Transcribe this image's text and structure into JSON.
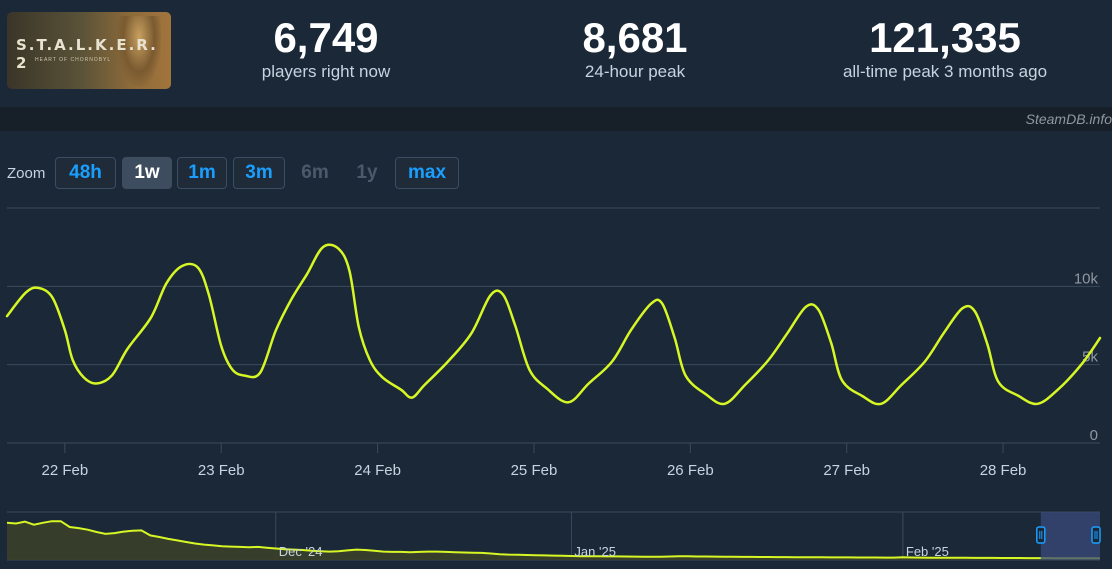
{
  "game": {
    "logo_text": "S.T.A.L.K.E.R. 2",
    "subtitle": "HEART OF CHORNOBYL"
  },
  "stats": [
    {
      "value": "6,749",
      "label": "players right now"
    },
    {
      "value": "8,681",
      "label": "24-hour peak"
    },
    {
      "value": "121,335",
      "label": "all-time peak 3 months ago"
    }
  ],
  "credit": "SteamDB.info",
  "zoom": {
    "label": "Zoom",
    "buttons": [
      {
        "label": "48h",
        "state": "normal"
      },
      {
        "label": "1w",
        "state": "active"
      },
      {
        "label": "1m",
        "state": "normal"
      },
      {
        "label": "3m",
        "state": "normal"
      },
      {
        "label": "6m",
        "state": "disabled"
      },
      {
        "label": "1y",
        "state": "disabled"
      },
      {
        "label": "max",
        "state": "normal"
      }
    ]
  },
  "colors": {
    "background": "#1b2838",
    "line": "#d7f725",
    "grid": "#3b4a5a",
    "accent": "#1a9fff",
    "navigator_fill": "#3b4128",
    "navigator_window": "#3a4a7a"
  },
  "chart_data": [
    {
      "type": "line",
      "title": "",
      "xlabel": "",
      "ylabel": "",
      "x_tick_labels": [
        "22 Feb",
        "23 Feb",
        "24 Feb",
        "25 Feb",
        "26 Feb",
        "27 Feb",
        "28 Feb"
      ],
      "y_tick_labels": [
        "0",
        "5k",
        "10k"
      ],
      "y_ticks": [
        0,
        5000,
        10000
      ],
      "ylim": [
        0,
        15000
      ],
      "x_unit": "days since 22 Feb 00:00",
      "xlim": [
        -0.37,
        6.62
      ],
      "grid": true,
      "series": [
        {
          "values_xy": [
            [
              -0.37,
              8100
            ],
            [
              -0.25,
              9600
            ],
            [
              -0.17,
              9900
            ],
            [
              -0.08,
              9300
            ],
            [
              0.0,
              7200
            ],
            [
              0.05,
              5300
            ],
            [
              0.12,
              4200
            ],
            [
              0.2,
              3800
            ],
            [
              0.3,
              4300
            ],
            [
              0.4,
              6000
            ],
            [
              0.55,
              8000
            ],
            [
              0.65,
              10200
            ],
            [
              0.75,
              11300
            ],
            [
              0.85,
              11200
            ],
            [
              0.92,
              9500
            ],
            [
              1.0,
              6200
            ],
            [
              1.07,
              4700
            ],
            [
              1.15,
              4300
            ],
            [
              1.25,
              4500
            ],
            [
              1.35,
              7200
            ],
            [
              1.45,
              9200
            ],
            [
              1.55,
              10800
            ],
            [
              1.65,
              12500
            ],
            [
              1.75,
              12400
            ],
            [
              1.82,
              11000
            ],
            [
              1.88,
              7400
            ],
            [
              1.95,
              5300
            ],
            [
              2.03,
              4200
            ],
            [
              2.15,
              3400
            ],
            [
              2.22,
              2900
            ],
            [
              2.3,
              3700
            ],
            [
              2.45,
              5200
            ],
            [
              2.6,
              7000
            ],
            [
              2.72,
              9400
            ],
            [
              2.8,
              9500
            ],
            [
              2.88,
              7500
            ],
            [
              2.97,
              4700
            ],
            [
              3.08,
              3500
            ],
            [
              3.22,
              2600
            ],
            [
              3.35,
              3800
            ],
            [
              3.5,
              5200
            ],
            [
              3.62,
              7200
            ],
            [
              3.75,
              8900
            ],
            [
              3.82,
              8900
            ],
            [
              3.9,
              6700
            ],
            [
              3.97,
              4300
            ],
            [
              4.1,
              3100
            ],
            [
              4.22,
              2500
            ],
            [
              4.35,
              3700
            ],
            [
              4.5,
              5300
            ],
            [
              4.62,
              7000
            ],
            [
              4.74,
              8700
            ],
            [
              4.82,
              8500
            ],
            [
              4.9,
              6400
            ],
            [
              4.97,
              4000
            ],
            [
              5.1,
              3000
            ],
            [
              5.22,
              2500
            ],
            [
              5.35,
              3700
            ],
            [
              5.5,
              5200
            ],
            [
              5.62,
              7000
            ],
            [
              5.74,
              8600
            ],
            [
              5.82,
              8400
            ],
            [
              5.9,
              6300
            ],
            [
              5.97,
              3900
            ],
            [
              6.1,
              3000
            ],
            [
              6.22,
              2500
            ],
            [
              6.35,
              3400
            ],
            [
              6.5,
              5000
            ],
            [
              6.62,
              6700
            ]
          ]
        }
      ]
    },
    {
      "type": "area",
      "title": "",
      "x_tick_labels": [
        "Dec '24",
        "Jan '25",
        "Feb '25"
      ],
      "ylim": [
        0,
        125000
      ],
      "grid": true,
      "selection": "last 1w",
      "series": [
        {
          "values": [
            97000,
            95000,
            100000,
            92000,
            97000,
            101000,
            101000,
            86000,
            83000,
            79000,
            73000,
            68000,
            70000,
            74000,
            76000,
            77000,
            64000,
            60000,
            55000,
            51000,
            47000,
            43000,
            40000,
            38000,
            36000,
            35000,
            34000,
            33000,
            34000,
            32000,
            30000,
            28000,
            27000,
            26000,
            24000,
            23000,
            22000,
            23000,
            25000,
            27000,
            26000,
            24000,
            22000,
            21000,
            21000,
            20000,
            21000,
            22000,
            22000,
            21000,
            20000,
            19500,
            19000,
            18500,
            17000,
            15000,
            14000,
            13500,
            13000,
            12500,
            12000,
            11500,
            11000,
            10500,
            10000,
            10000,
            9800,
            9500,
            9300,
            9000,
            8800,
            8700,
            8500,
            8300,
            9000,
            10000,
            9600,
            9200,
            9000,
            8800,
            8600,
            8400,
            8200,
            8000,
            7900,
            7800,
            7600,
            7500,
            7400,
            7300,
            7200,
            7000,
            6900,
            6800,
            6700,
            6600,
            6500,
            6400,
            6300,
            6200,
            7000,
            6500,
            6300,
            6100,
            6000,
            5800,
            5700,
            5600,
            5500,
            5500,
            5400,
            5300,
            5200,
            5100,
            5000,
            5000,
            4900,
            4800,
            4800,
            4700,
            4600,
            4500,
            4500
          ]
        }
      ]
    }
  ]
}
